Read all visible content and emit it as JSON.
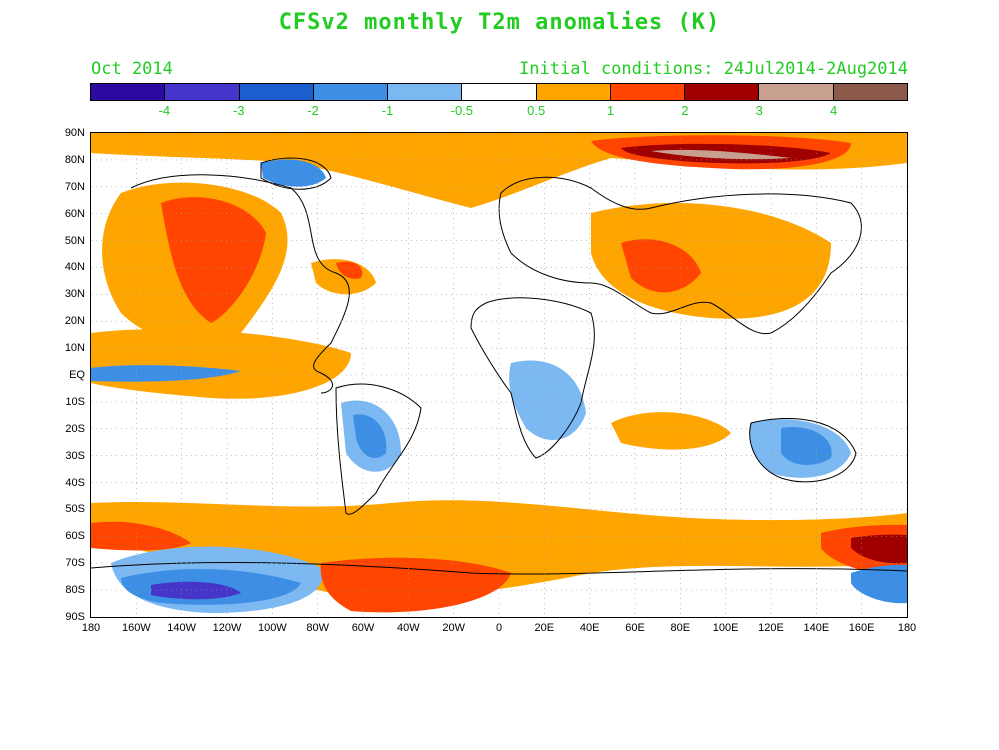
{
  "title": "CFSv2 monthly T2m anomalies (K)",
  "month": "Oct 2014",
  "initial_conditions": "Initial conditions: 24Jul2014-2Aug2014",
  "colorbar": {
    "colors": [
      "#2a0aa0",
      "#4535c8",
      "#1e5fcf",
      "#3d8fe6",
      "#7cb8f2",
      "#ffffff",
      "#ffa500",
      "#ff4500",
      "#a00000",
      "#c8a090",
      "#8c5a4a"
    ],
    "labels": [
      "-4",
      "-3",
      "-2",
      "-1",
      "-0.5",
      "0.5",
      "1",
      "2",
      "3",
      "4"
    ]
  },
  "lat_labels": [
    "90N",
    "80N",
    "70N",
    "60N",
    "50N",
    "40N",
    "30N",
    "20N",
    "10N",
    "EQ",
    "10S",
    "20S",
    "30S",
    "40S",
    "50S",
    "60S",
    "70S",
    "80S",
    "90S"
  ],
  "lon_labels": [
    "180",
    "160W",
    "140W",
    "120W",
    "100W",
    "80W",
    "60W",
    "40W",
    "20W",
    "0",
    "20E",
    "40E",
    "60E",
    "80E",
    "100E",
    "120E",
    "140E",
    "160E",
    "180"
  ]
}
